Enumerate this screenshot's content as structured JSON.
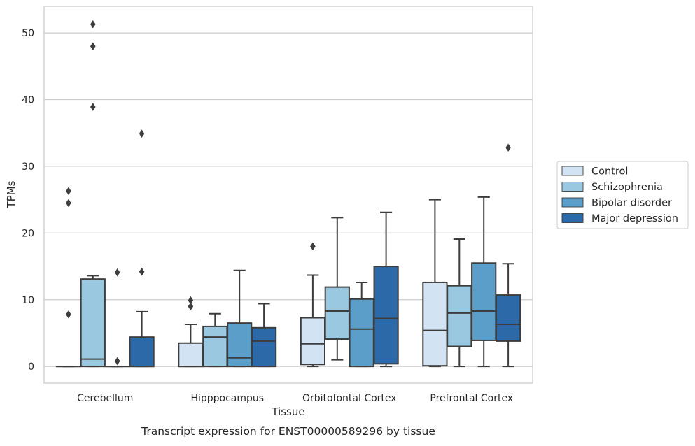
{
  "chart_data": {
    "type": "box",
    "title": "",
    "xlabel": "Tissue",
    "ylabel": "TPMs",
    "caption": "Transcript expression for ENST00000589296 by tissue",
    "ylim": [
      -2.5,
      54
    ],
    "yticks": [
      0,
      10,
      20,
      30,
      40,
      50
    ],
    "grid": "horizontal",
    "legend_position": "right",
    "categories": [
      "Cerebellum",
      "Hipppocampus",
      "Orbitofontal Cortex",
      "Prefrontal Cortex"
    ],
    "series": [
      {
        "name": "Control",
        "color": "#d2e3f3",
        "boxes": [
          {
            "whisker_low": 0,
            "q1": 0,
            "median": 0,
            "q3": 0,
            "whisker_high": 0,
            "outliers": [
              7.8,
              24.5,
              26.3
            ]
          },
          {
            "whisker_low": 0,
            "q1": 0,
            "median": 0,
            "q3": 3.5,
            "whisker_high": 6.3,
            "outliers": [
              9.0,
              9.9
            ]
          },
          {
            "whisker_low": 0,
            "q1": 0.3,
            "median": 3.4,
            "q3": 7.3,
            "whisker_high": 13.7,
            "outliers": [
              18.0
            ]
          },
          {
            "whisker_low": 0,
            "q1": 0.1,
            "median": 5.4,
            "q3": 12.6,
            "whisker_high": 25.0,
            "outliers": []
          }
        ]
      },
      {
        "name": "Schizophrenia",
        "color": "#9ac8e0",
        "boxes": [
          {
            "whisker_low": 0,
            "q1": 0,
            "median": 1.1,
            "q3": 13.1,
            "whisker_high": 13.6,
            "outliers": [
              38.9,
              48.0,
              51.3
            ]
          },
          {
            "whisker_low": 0,
            "q1": 0,
            "median": 4.4,
            "q3": 6.0,
            "whisker_high": 7.9,
            "outliers": []
          },
          {
            "whisker_low": 1.0,
            "q1": 4.1,
            "median": 8.3,
            "q3": 11.9,
            "whisker_high": 22.3,
            "outliers": []
          },
          {
            "whisker_low": 0,
            "q1": 3.0,
            "median": 8.0,
            "q3": 12.1,
            "whisker_high": 19.1,
            "outliers": []
          }
        ]
      },
      {
        "name": "Bipolar disorder",
        "color": "#5a9ec9",
        "boxes": [
          {
            "whisker_low": 0,
            "q1": 0,
            "median": 0,
            "q3": 0,
            "whisker_high": 0,
            "outliers": [
              0.8,
              14.1
            ]
          },
          {
            "whisker_low": 0,
            "q1": 0,
            "median": 1.3,
            "q3": 6.5,
            "whisker_high": 14.4,
            "outliers": []
          },
          {
            "whisker_low": 0,
            "q1": 0,
            "median": 5.6,
            "q3": 10.1,
            "whisker_high": 12.6,
            "outliers": []
          },
          {
            "whisker_low": 0,
            "q1": 3.9,
            "median": 8.3,
            "q3": 15.5,
            "whisker_high": 25.4,
            "outliers": []
          }
        ]
      },
      {
        "name": "Major depression",
        "color": "#2c69a9",
        "boxes": [
          {
            "whisker_low": 0,
            "q1": 0,
            "median": 0,
            "q3": 4.4,
            "whisker_high": 8.2,
            "outliers": [
              14.2,
              34.9
            ]
          },
          {
            "whisker_low": 0,
            "q1": 0,
            "median": 3.8,
            "q3": 5.8,
            "whisker_high": 9.4,
            "outliers": []
          },
          {
            "whisker_low": 0,
            "q1": 0.4,
            "median": 7.2,
            "q3": 15.0,
            "whisker_high": 23.1,
            "outliers": []
          },
          {
            "whisker_low": 0,
            "q1": 3.8,
            "median": 6.3,
            "q3": 10.7,
            "whisker_high": 15.4,
            "outliers": [
              32.8
            ]
          }
        ]
      }
    ]
  }
}
